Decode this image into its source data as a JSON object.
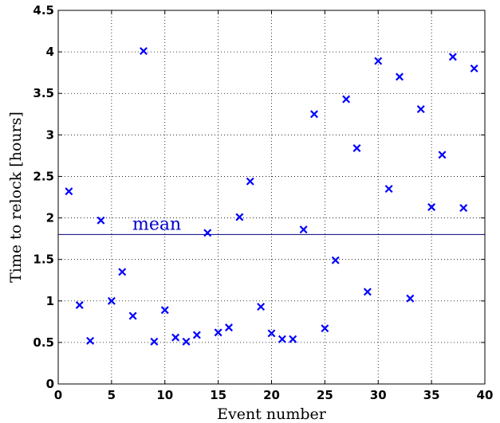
{
  "chart_data": {
    "type": "scatter",
    "title": "",
    "xlabel": "Event number",
    "ylabel": "Time to relock [hours]",
    "xlim": [
      0,
      40
    ],
    "ylim": [
      0,
      4.5
    ],
    "xticks": [
      0,
      5,
      10,
      15,
      20,
      25,
      30,
      35,
      40
    ],
    "yticks": [
      0,
      0.5,
      1,
      1.5,
      2,
      2.5,
      3,
      3.5,
      4,
      4.5
    ],
    "xtick_labels": [
      "0",
      "5",
      "10",
      "15",
      "20",
      "25",
      "30",
      "35",
      "40"
    ],
    "ytick_labels": [
      "0",
      "0.5",
      "1",
      "1.5",
      "2",
      "2.5",
      "3",
      "3.5",
      "4",
      "4.5"
    ],
    "grid": true,
    "marker": "x",
    "marker_color": "#0000ff",
    "series": [
      {
        "x": [
          1,
          2,
          3,
          4,
          5,
          6,
          7,
          8,
          9,
          10,
          11,
          12,
          13,
          14,
          15,
          16,
          17,
          18,
          19,
          20,
          21,
          22,
          23,
          24,
          25,
          26,
          27,
          28,
          29,
          30,
          31,
          32,
          33,
          34,
          35,
          36,
          37,
          38,
          39
        ],
        "y": [
          2.32,
          0.95,
          0.52,
          1.97,
          1.0,
          1.35,
          0.82,
          4.01,
          0.51,
          0.89,
          0.56,
          0.51,
          0.59,
          1.82,
          0.62,
          0.68,
          2.01,
          2.44,
          0.93,
          0.61,
          0.54,
          0.54,
          1.86,
          3.25,
          0.67,
          1.49,
          3.43,
          2.84,
          1.11,
          3.89,
          2.35,
          3.7,
          1.03,
          3.31,
          2.13,
          2.76,
          3.94,
          2.12,
          3.8
        ]
      }
    ],
    "reference_line": {
      "label": "mean",
      "y": 1.8,
      "color": "#000080",
      "label_color": "#0000cc"
    }
  }
}
